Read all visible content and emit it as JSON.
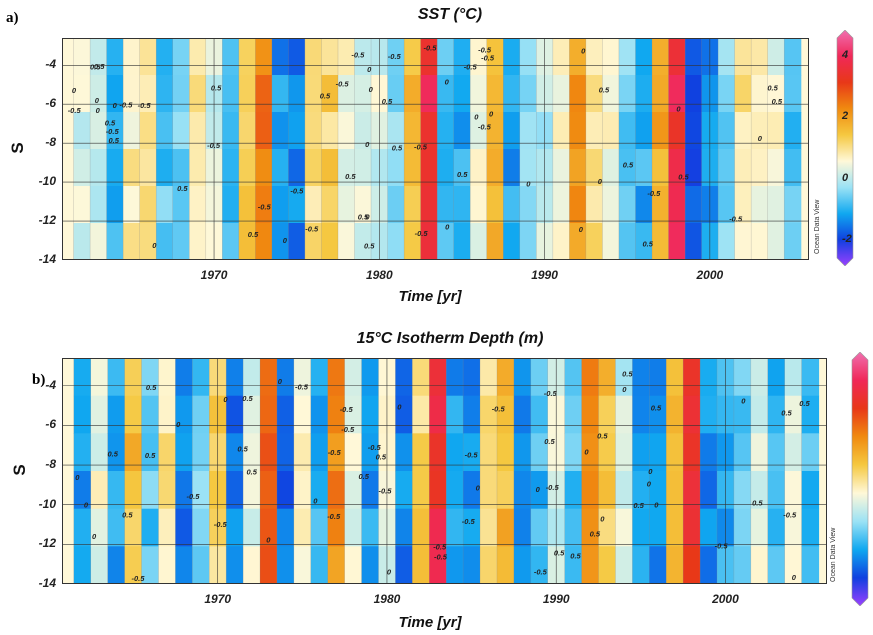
{
  "chart_data": [
    {
      "type": "heatmap",
      "panel_label": "a)",
      "title": "SST (°C)",
      "xlabel": "Time [yr]",
      "ylabel": "S",
      "xlim": [
        1960.8,
        2006
      ],
      "ylim": [
        -14,
        -2.6
      ],
      "xticks": [
        "1970",
        "1980",
        "1990",
        "2000"
      ],
      "yticks": [
        "-4",
        "-6",
        "-8",
        "-10",
        "-12",
        "-14"
      ],
      "colorbar_ticks": [
        "4",
        "2",
        "0",
        "-2"
      ],
      "contour_labels": [
        "-0.5",
        "0",
        "0.5"
      ],
      "watermark": "Ocean Data View",
      "colorscale": [
        "#9a40ff",
        "#1040e0",
        "#10a8f0",
        "#9be2f5",
        "#fff8d8",
        "#f5c840",
        "#f08a10",
        "#e83818",
        "#f02858",
        "#f070b0"
      ],
      "anomalies": [
        {
          "year": 1962,
          "value": 0.3
        },
        {
          "year": 1963,
          "value": 0.2
        },
        {
          "year": 1964,
          "value": -0.8
        },
        {
          "year": 1965,
          "value": 0.8
        },
        {
          "year": 1966,
          "value": 1.0
        },
        {
          "year": 1967,
          "value": -0.6
        },
        {
          "year": 1968,
          "value": -0.5
        },
        {
          "year": 1969,
          "value": 0.9
        },
        {
          "year": 1970,
          "value": 0.3
        },
        {
          "year": 1971,
          "value": -0.9
        },
        {
          "year": 1972,
          "value": 1.4
        },
        {
          "year": 1973,
          "value": 2.3
        },
        {
          "year": 1974,
          "value": -1.1
        },
        {
          "year": 1975,
          "value": -1.3
        },
        {
          "year": 1976,
          "value": 1.0
        },
        {
          "year": 1977,
          "value": 1.2
        },
        {
          "year": 1978,
          "value": 0.6
        },
        {
          "year": 1979,
          "value": 0.4
        },
        {
          "year": 1980,
          "value": 0.3
        },
        {
          "year": 1981,
          "value": -0.4
        },
        {
          "year": 1982,
          "value": 1.5
        },
        {
          "year": 1983,
          "value": 3.6
        },
        {
          "year": 1984,
          "value": -0.8
        },
        {
          "year": 1985,
          "value": -0.9
        },
        {
          "year": 1986,
          "value": 0.4
        },
        {
          "year": 1987,
          "value": 1.5
        },
        {
          "year": 1988,
          "value": -1.0
        },
        {
          "year": 1989,
          "value": -0.3
        },
        {
          "year": 1990,
          "value": 0.1
        },
        {
          "year": 1991,
          "value": 0.7
        },
        {
          "year": 1992,
          "value": 1.9
        },
        {
          "year": 1993,
          "value": 1.0
        },
        {
          "year": 1994,
          "value": 0.6
        },
        {
          "year": 1995,
          "value": -0.4
        },
        {
          "year": 1996,
          "value": -0.9
        },
        {
          "year": 1997,
          "value": 1.8
        },
        {
          "year": 1998,
          "value": 3.5
        },
        {
          "year": 1999,
          "value": -1.6
        },
        {
          "year": 2000,
          "value": -1.2
        },
        {
          "year": 2001,
          "value": -0.3
        },
        {
          "year": 2002,
          "value": 0.9
        },
        {
          "year": 2003,
          "value": 0.6
        },
        {
          "year": 2004,
          "value": 0.5
        },
        {
          "year": 2005,
          "value": -0.6
        }
      ]
    },
    {
      "type": "heatmap",
      "panel_label": "b)",
      "title": "15°C Isotherm Depth (m)",
      "xlabel": "Time [yr]",
      "ylabel": "S",
      "xlim": [
        1960.8,
        2006
      ],
      "ylim": [
        -14,
        -2.6
      ],
      "xticks": [
        "1970",
        "1980",
        "1990",
        "2000"
      ],
      "yticks": [
        "-4",
        "-6",
        "-8",
        "-10",
        "-12",
        "-14"
      ],
      "colorbar_ticks": [],
      "contour_labels": [
        "-0.5",
        "0",
        "0.5"
      ],
      "watermark": "Ocean Data View",
      "colorscale": [
        "#9a40ff",
        "#1040e0",
        "#10a8f0",
        "#9be2f5",
        "#fff8d8",
        "#f5c840",
        "#f08a10",
        "#e83818",
        "#f02858",
        "#f070b0"
      ],
      "anomalies": [
        {
          "year": 1962,
          "value": -1.2
        },
        {
          "year": 1963,
          "value": 0.5
        },
        {
          "year": 1964,
          "value": -1.0
        },
        {
          "year": 1965,
          "value": 1.5
        },
        {
          "year": 1966,
          "value": -0.6
        },
        {
          "year": 1967,
          "value": 0.9
        },
        {
          "year": 1968,
          "value": -1.3
        },
        {
          "year": 1969,
          "value": -0.5
        },
        {
          "year": 1970,
          "value": 1.2
        },
        {
          "year": 1971,
          "value": -1.4
        },
        {
          "year": 1972,
          "value": 0.3
        },
        {
          "year": 1973,
          "value": 2.5
        },
        {
          "year": 1974,
          "value": -1.5
        },
        {
          "year": 1975,
          "value": 0.6
        },
        {
          "year": 1976,
          "value": -0.9
        },
        {
          "year": 1977,
          "value": 2.2
        },
        {
          "year": 1978,
          "value": 0.4
        },
        {
          "year": 1979,
          "value": -1.1
        },
        {
          "year": 1980,
          "value": 0.5
        },
        {
          "year": 1981,
          "value": -1.3
        },
        {
          "year": 1982,
          "value": 1.2
        },
        {
          "year": 1983,
          "value": 3.4
        },
        {
          "year": 1984,
          "value": -1.0
        },
        {
          "year": 1985,
          "value": -1.2
        },
        {
          "year": 1986,
          "value": 1.0
        },
        {
          "year": 1987,
          "value": 1.6
        },
        {
          "year": 1988,
          "value": -1.4
        },
        {
          "year": 1989,
          "value": -0.8
        },
        {
          "year": 1990,
          "value": 0.3
        },
        {
          "year": 1991,
          "value": -0.6
        },
        {
          "year": 1992,
          "value": 2.3
        },
        {
          "year": 1993,
          "value": 1.4
        },
        {
          "year": 1994,
          "value": 0.2
        },
        {
          "year": 1995,
          "value": -1.0
        },
        {
          "year": 1996,
          "value": -1.3
        },
        {
          "year": 1997,
          "value": 1.5
        },
        {
          "year": 1998,
          "value": 3.2
        },
        {
          "year": 1999,
          "value": -1.2
        },
        {
          "year": 2000,
          "value": -0.9
        },
        {
          "year": 2001,
          "value": -0.6
        },
        {
          "year": 2002,
          "value": 0.4
        },
        {
          "year": 2003,
          "value": -0.8
        },
        {
          "year": 2004,
          "value": 0.3
        },
        {
          "year": 2005,
          "value": -0.7
        }
      ]
    }
  ]
}
